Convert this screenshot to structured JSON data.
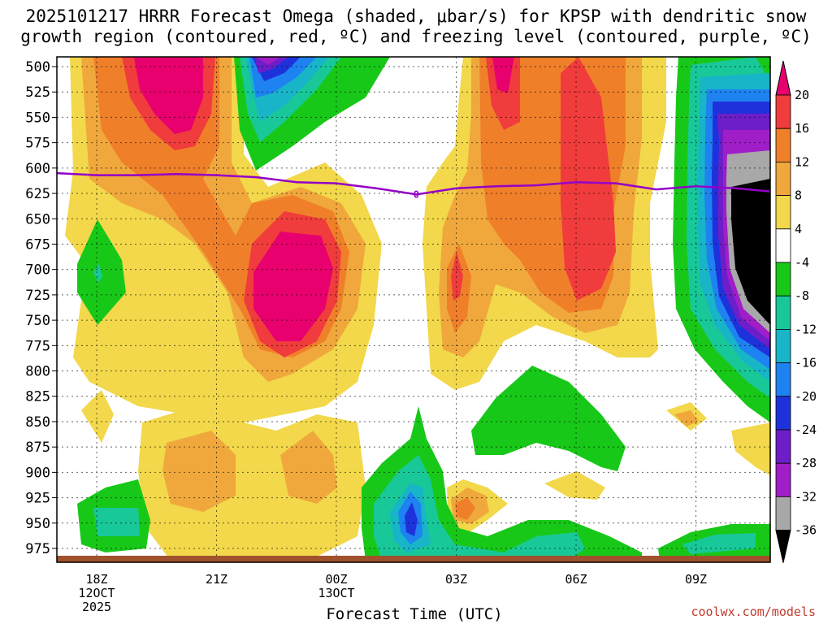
{
  "title": {
    "line1": "2025101217 HRRR Forecast Omega (shaded, μbar/s) for KPSP with dendritic snow",
    "line2": "growth region (contoured, red, ºC) and freezing level (contoured, purple, ºC)"
  },
  "credit": "coolwx.com/models",
  "chart_data": {
    "type": "heatmap",
    "xlabel": "Forecast Time (UTC)",
    "ylabel": "",
    "y_ticks": [
      "500",
      "525",
      "550",
      "575",
      "600",
      "625",
      "650",
      "675",
      "700",
      "725",
      "750",
      "775",
      "800",
      "825",
      "850",
      "875",
      "900",
      "925",
      "950",
      "975"
    ],
    "y_range": [
      500,
      990
    ],
    "x_range_hours_utc": [
      "17Z 12OCT",
      "11Z 13OCT"
    ],
    "x_ticks": [
      {
        "label": "18Z",
        "sub": [
          "12OCT",
          "2025"
        ]
      },
      {
        "label": "21Z",
        "sub": []
      },
      {
        "label": "00Z",
        "sub": [
          "13OCT"
        ]
      },
      {
        "label": "03Z",
        "sub": []
      },
      {
        "label": "06Z",
        "sub": []
      },
      {
        "label": "09Z",
        "sub": []
      }
    ],
    "colorbar": {
      "labels": [
        "20",
        "16",
        "12",
        "8",
        "4",
        "-4",
        "-8",
        "-12",
        "-16",
        "-20",
        "-24",
        "-28",
        "-32",
        "-36"
      ],
      "colors": [
        "#e8006e",
        "#f03c3c",
        "#f07f2a",
        "#f0a83c",
        "#f2d84a",
        "#ffffff",
        "#18c818",
        "#18c898",
        "#18b4c8",
        "#1e82f0",
        "#1e32dc",
        "#6e1ec8",
        "#a01ec8",
        "#a8a8a8",
        "#000000"
      ]
    },
    "freezing_level": {
      "label": "0",
      "color": "#9400c8",
      "pressure_by_hour": [
        {
          "t": "17Z",
          "p": 605
        },
        {
          "t": "18Z",
          "p": 607
        },
        {
          "t": "19Z",
          "p": 607
        },
        {
          "t": "20Z",
          "p": 606
        },
        {
          "t": "21Z",
          "p": 607
        },
        {
          "t": "22Z",
          "p": 609
        },
        {
          "t": "23Z",
          "p": 614
        },
        {
          "t": "00Z",
          "p": 615
        },
        {
          "t": "01Z",
          "p": 620
        },
        {
          "t": "02Z",
          "p": 626
        },
        {
          "t": "03Z",
          "p": 620
        },
        {
          "t": "04Z",
          "p": 618
        },
        {
          "t": "05Z",
          "p": 617
        },
        {
          "t": "06Z",
          "p": 614
        },
        {
          "t": "07Z",
          "p": 615
        },
        {
          "t": "08Z",
          "p": 621
        },
        {
          "t": "09Z",
          "p": 618
        },
        {
          "t": "10Z",
          "p": 620
        },
        {
          "t": "11Z",
          "p": 623
        }
      ]
    },
    "omega_centers": [
      {
        "t": "19Z",
        "p": 510,
        "value": 20
      },
      {
        "t": "23Z",
        "p": 680,
        "value": 20
      },
      {
        "t": "22Z",
        "p": 510,
        "value": -28
      },
      {
        "t": "02Z",
        "p": 940,
        "value": -24
      },
      {
        "t": "04Z",
        "p": 510,
        "value": 20
      },
      {
        "t": "03Z",
        "p": 920,
        "value": 12
      },
      {
        "t": "11Z",
        "p": 680,
        "value": -36
      }
    ]
  }
}
